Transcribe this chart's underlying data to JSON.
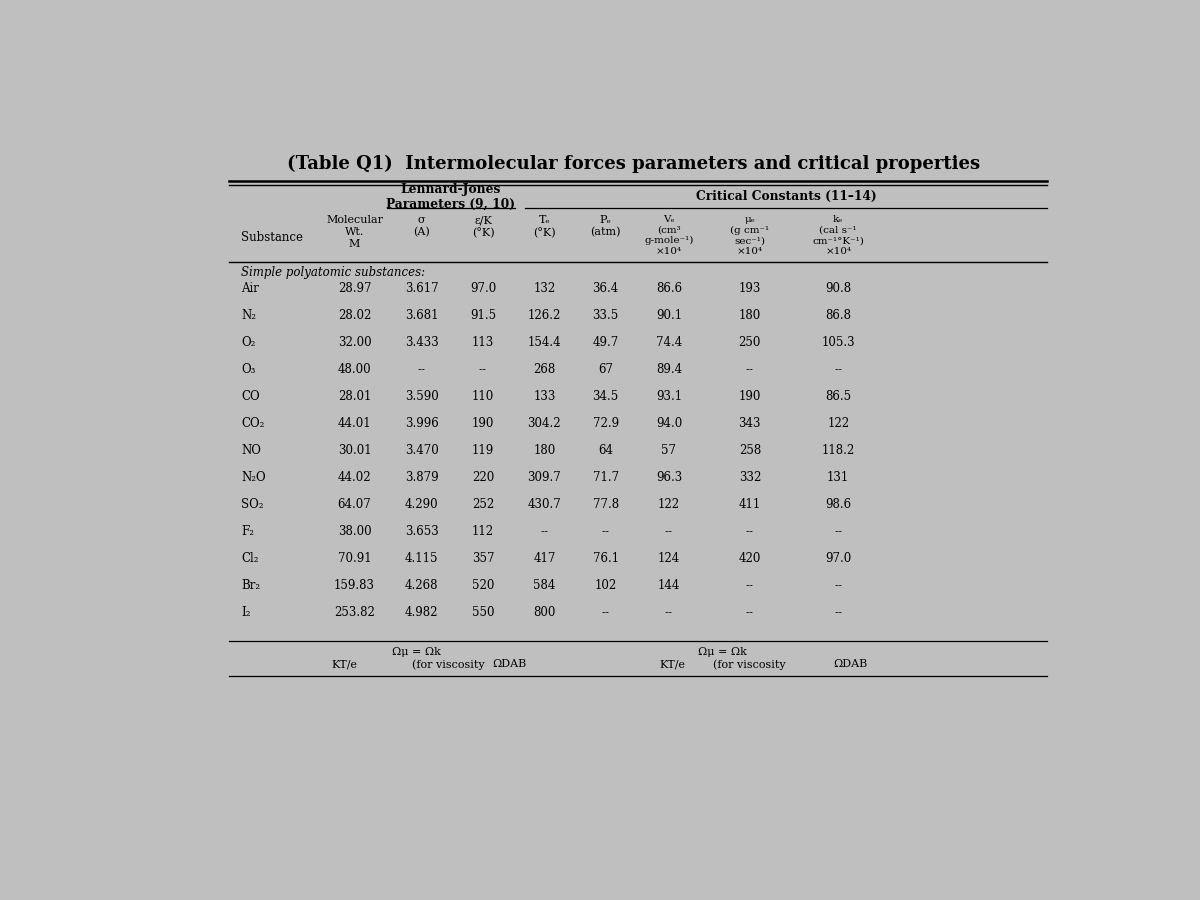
{
  "title": "(Table Q1)  Intermolecular forces parameters and critical properties",
  "bg_color": "#c0bfbf",
  "header_lj": "Lennard-Jones\nParameters (9, 10)",
  "header_cc": "Critical Constants (11–14)",
  "section_header": "Simple polyatomic substances:",
  "substance_label": "Substance",
  "substances": [
    "Air",
    "N₂",
    "O₂",
    "O₃",
    "CO",
    "CO₂",
    "NO",
    "N₂O",
    "SO₂",
    "F₂",
    "Cl₂",
    "Br₂",
    "I₂"
  ],
  "data": [
    [
      "28.97",
      "3.617",
      "97.0",
      "132",
      "36.4",
      "86.6",
      "193",
      "90.8"
    ],
    [
      "28.02",
      "3.681",
      "91.5",
      "126.2",
      "33.5",
      "90.1",
      "180",
      "86.8"
    ],
    [
      "32.00",
      "3.433",
      "113",
      "154.4",
      "49.7",
      "74.4",
      "250",
      "105.3"
    ],
    [
      "48.00",
      "--",
      "--",
      "268",
      "67",
      "89.4",
      "--",
      "--"
    ],
    [
      "28.01",
      "3.590",
      "110",
      "133",
      "34.5",
      "93.1",
      "190",
      "86.5"
    ],
    [
      "44.01",
      "3.996",
      "190",
      "304.2",
      "72.9",
      "94.0",
      "343",
      "122"
    ],
    [
      "30.01",
      "3.470",
      "119",
      "180",
      "64",
      "57",
      "258",
      "118.2"
    ],
    [
      "44.02",
      "3.879",
      "220",
      "309.7",
      "71.7",
      "96.3",
      "332",
      "131"
    ],
    [
      "64.07",
      "4.290",
      "252",
      "430.7",
      "77.8",
      "122",
      "411",
      "98.6"
    ],
    [
      "38.00",
      "3.653",
      "112",
      "--",
      "--",
      "--",
      "--",
      "--"
    ],
    [
      "70.91",
      "4.115",
      "357",
      "417",
      "76.1",
      "124",
      "420",
      "97.0"
    ],
    [
      "159.83",
      "4.268",
      "520",
      "584",
      "102",
      "144",
      "--",
      "--"
    ],
    [
      "253.82",
      "4.982",
      "550",
      "800",
      "--",
      "--",
      "--",
      "--"
    ]
  ],
  "col_M_label": "Molecular\nWt.\nM",
  "col_sigma_label": "σ\n(A)",
  "col_epsk_label": "ε/K\n(°K)",
  "col_Tc_label": "Tₑ\n(°K)",
  "col_Pc_label": "Pₑ\n(atm)",
  "col_Vc_label": "Vₑ\n(cm³\ng-mole⁻¹)\n×10⁴",
  "col_muc_label": "μₑ\n(g cm⁻¹\nsec⁻¹)\n×10⁴",
  "col_kc_label": "kₑ\n(cal s⁻¹\ncm⁻¹°K⁻¹)\n×10⁴",
  "footer_omega_eq": "Ωμ = Ωk",
  "footer_kt_label": "KT/e",
  "footer_viscosity": "(for viscosity",
  "footer_odab": "ΩDAB"
}
